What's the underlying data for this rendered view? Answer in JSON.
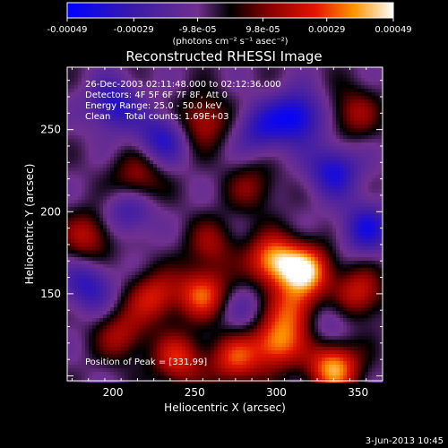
{
  "chart_data": {
    "type": "heatmap",
    "title": "Reconstructed RHESSI Image",
    "xlabel": "Heliocentric X (arcsec)",
    "ylabel": "Heliocentric Y (arcsec)",
    "xlim": [
      172,
      365
    ],
    "ylim": [
      97,
      288
    ],
    "x_ticks": [
      200,
      250,
      300,
      350
    ],
    "y_ticks": [
      150,
      200,
      250
    ],
    "colorbar": {
      "min": -0.00049,
      "max": 0.00049,
      "tick_values": [
        -0.00049,
        -0.00029,
        -9.8e-05,
        9.8e-05,
        0.00029,
        0.00049
      ],
      "tick_labels": [
        "-0.00049",
        "-0.00029",
        "-9.8e-05",
        "9.8e-05",
        "0.00029",
        "0.00049"
      ],
      "units": "(photons cm⁻² s⁻¹ asec⁻²)"
    },
    "annotations": {
      "time_range": "26-Dec-2003 02:11:48.000 to 02:12:36.000",
      "detectors": "Detectors: 4F 5F 6F 7F 8F, Att 0",
      "energy_range": "Energy Range: 25.0 - 50.0 keV",
      "clean_counts": "Clean     Total counts: 1.69E+03",
      "peak": "Position of Peak = [331,99]"
    },
    "peak_position": [
      331,
      99
    ],
    "date_stamp": "3-Jun-2013 10:45",
    "sources": [
      {
        "x": 298,
        "y": 170,
        "value": 0.00046
      },
      {
        "x": 318,
        "y": 164,
        "value": 0.00049
      },
      {
        "x": 255,
        "y": 150,
        "value": 0.00038
      },
      {
        "x": 225,
        "y": 148,
        "value": 0.0003
      },
      {
        "x": 335,
        "y": 105,
        "value": 0.00048
      },
      {
        "x": 300,
        "y": 120,
        "value": 0.00042
      },
      {
        "x": 275,
        "y": 110,
        "value": 0.00034
      },
      {
        "x": 240,
        "y": 110,
        "value": 0.00032
      },
      {
        "x": 350,
        "y": 150,
        "value": 0.0003
      },
      {
        "x": 312,
        "y": 140,
        "value": 0.00036
      },
      {
        "x": 255,
        "y": 255,
        "value": 0.00028
      },
      {
        "x": 215,
        "y": 220,
        "value": 0.00024
      },
      {
        "x": 185,
        "y": 185,
        "value": 0.00026
      },
      {
        "x": 347,
        "y": 260,
        "value": 0.00022
      },
      {
        "x": 260,
        "y": 180,
        "value": 0.0002
      },
      {
        "x": 205,
        "y": 125,
        "value": 0.00024
      },
      {
        "x": 285,
        "y": 215,
        "value": 0.00018
      },
      {
        "x": 200,
        "y": 265,
        "value": -0.0003
      },
      {
        "x": 313,
        "y": 258,
        "value": -0.00038
      },
      {
        "x": 335,
        "y": 225,
        "value": -0.00032
      },
      {
        "x": 230,
        "y": 245,
        "value": -0.00028
      },
      {
        "x": 185,
        "y": 155,
        "value": -0.00026
      },
      {
        "x": 355,
        "y": 190,
        "value": -0.0003
      },
      {
        "x": 290,
        "y": 250,
        "value": -0.00025
      },
      {
        "x": 210,
        "y": 200,
        "value": -0.00022
      },
      {
        "x": 330,
        "y": 135,
        "value": -0.00018
      },
      {
        "x": 280,
        "y": 140,
        "value": -0.00012
      }
    ]
  }
}
